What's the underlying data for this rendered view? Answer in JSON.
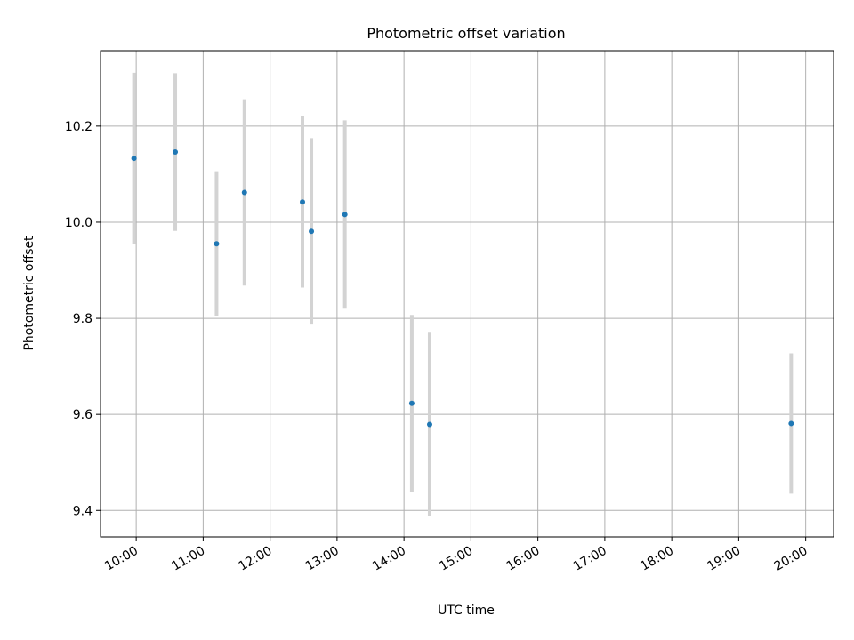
{
  "chart_data": {
    "type": "scatter",
    "title": "Photometric offset variation",
    "xlabel": "UTC time",
    "ylabel": "Photometric offset",
    "x_ticks": [
      "10:00",
      "11:00",
      "12:00",
      "13:00",
      "14:00",
      "15:00",
      "16:00",
      "17:00",
      "18:00",
      "19:00",
      "20:00"
    ],
    "y_ticks": [
      "9.4",
      "9.6",
      "9.8",
      "10.0",
      "10.2"
    ],
    "xlim": [
      "09:28",
      "20:25"
    ],
    "ylim": [
      9.345,
      10.357
    ],
    "grid": true,
    "series": [
      {
        "points": [
          {
            "x": "09:58",
            "y": 10.133,
            "err": 0.178
          },
          {
            "x": "10:35",
            "y": 10.146,
            "err": 0.164
          },
          {
            "x": "11:12",
            "y": 9.955,
            "err": 0.151
          },
          {
            "x": "11:37",
            "y": 10.062,
            "err": 0.194
          },
          {
            "x": "12:29",
            "y": 10.042,
            "err": 0.178
          },
          {
            "x": "12:37",
            "y": 9.981,
            "err": 0.194
          },
          {
            "x": "13:07",
            "y": 10.016,
            "err": 0.196
          },
          {
            "x": "14:07",
            "y": 9.623,
            "err": 0.184
          },
          {
            "x": "14:23",
            "y": 9.579,
            "err": 0.191
          },
          {
            "x": "19:47",
            "y": 9.581,
            "err": 0.146
          }
        ]
      }
    ]
  },
  "colors": {
    "marker": "#1f77b4",
    "errorbar": "#d3d3d3",
    "grid": "#b0b0b0",
    "axes": "#000000"
  }
}
